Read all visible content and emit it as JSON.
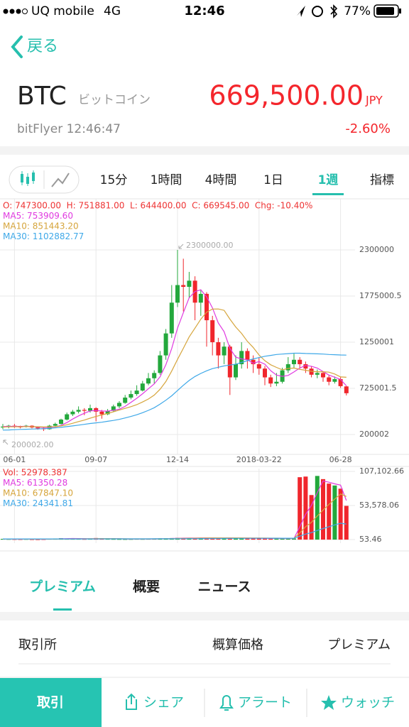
{
  "status_bar": {
    "carrier": "UQ mobile",
    "network": "4G",
    "time": "12:46",
    "battery": "77%"
  },
  "header": {
    "back": "戻る",
    "symbol": "BTC",
    "name": "ビットコイン",
    "price": "669,500.00",
    "currency": "JPY",
    "source_time": "bitFlyer 12:46:47",
    "change": "-2.60%"
  },
  "timeframe_tabs": {
    "items": [
      "15分",
      "1時間",
      "4時間",
      "1日",
      "1週",
      "指標"
    ],
    "active": 4
  },
  "chart_data": [
    {
      "type": "candlestick",
      "info_line": "O: 747300.00  H: 751881.00  L: 644400.00  C: 669545.00  Chg: -10.40%",
      "annotations": [
        "2300000.00",
        "200002.00"
      ],
      "categories": [
        null,
        null,
        "06-01",
        null,
        null,
        null,
        null,
        null,
        null,
        null,
        null,
        null,
        null,
        null,
        null,
        null,
        "09-07",
        null,
        null,
        null,
        null,
        null,
        null,
        null,
        null,
        null,
        null,
        null,
        null,
        null,
        "12-14",
        null,
        null,
        null,
        null,
        null,
        null,
        null,
        null,
        null,
        null,
        null,
        null,
        null,
        "2018-03-22",
        null,
        null,
        null,
        null,
        null,
        null,
        null,
        null,
        null,
        null,
        null,
        null,
        null,
        "06-28",
        null
      ],
      "open": [
        280000,
        290000,
        300000,
        290000,
        285000,
        300000,
        280000,
        270000,
        260000,
        300000,
        320000,
        370000,
        430000,
        460000,
        480000,
        470000,
        500000,
        460000,
        430000,
        470000,
        520000,
        560000,
        620000,
        660000,
        700000,
        780000,
        840000,
        900000,
        1100000,
        1350000,
        1700000,
        1900000,
        1880000,
        1950000,
        1700000,
        1800000,
        1500000,
        1250000,
        1100000,
        1200000,
        850000,
        1000000,
        1150000,
        1050000,
        1000000,
        950000,
        850000,
        780000,
        800000,
        930000,
        1000000,
        1050000,
        1000000,
        950000,
        880000,
        900000,
        850000,
        800000,
        830000,
        747300
      ],
      "high": [
        320000,
        310000,
        320000,
        300000,
        310000,
        305000,
        290000,
        285000,
        310000,
        335000,
        380000,
        450000,
        480000,
        520000,
        500000,
        540000,
        510000,
        480000,
        490000,
        540000,
        580000,
        650000,
        700000,
        760000,
        810000,
        900000,
        930000,
        1150000,
        1400000,
        1900000,
        2300000,
        2200000,
        2050000,
        2000000,
        1850000,
        1820000,
        1550000,
        1300000,
        1250000,
        1220000,
        1100000,
        1250000,
        1180000,
        1100000,
        1080000,
        980000,
        880000,
        900000,
        960000,
        1080000,
        1120000,
        1080000,
        1030000,
        980000,
        940000,
        920000,
        870000,
        860000,
        850000,
        751881
      ],
      "low": [
        260000,
        270000,
        275000,
        270000,
        280000,
        270000,
        255000,
        240000,
        255000,
        295000,
        315000,
        360000,
        410000,
        440000,
        420000,
        450000,
        350000,
        380000,
        420000,
        460000,
        500000,
        550000,
        600000,
        640000,
        690000,
        760000,
        780000,
        880000,
        1050000,
        1300000,
        1650000,
        1600000,
        1750000,
        1500000,
        1550000,
        1200000,
        1100000,
        950000,
        1000000,
        650000,
        820000,
        950000,
        950000,
        900000,
        880000,
        760000,
        740000,
        750000,
        780000,
        900000,
        960000,
        950000,
        900000,
        850000,
        840000,
        800000,
        760000,
        780000,
        730000,
        644400
      ],
      "close": [
        290000,
        300000,
        290000,
        285000,
        300000,
        280000,
        270000,
        260000,
        300000,
        320000,
        370000,
        430000,
        460000,
        480000,
        470000,
        500000,
        460000,
        430000,
        470000,
        520000,
        560000,
        620000,
        660000,
        700000,
        780000,
        840000,
        900000,
        1100000,
        1350000,
        1700000,
        1900000,
        1880000,
        1950000,
        1700000,
        1800000,
        1500000,
        1250000,
        1100000,
        1200000,
        850000,
        1000000,
        1150000,
        1050000,
        1000000,
        950000,
        850000,
        780000,
        800000,
        930000,
        1000000,
        1050000,
        1000000,
        950000,
        880000,
        900000,
        850000,
        800000,
        830000,
        750000,
        669545
      ],
      "up_color": "#23a83c",
      "down_color": "#f0262c",
      "series": [
        {
          "name": "MA5: 753909.60",
          "color": "#e03ae0",
          "values": [
            290000,
            292000,
            293000,
            292000,
            293000,
            291000,
            285000,
            279000,
            282000,
            286000,
            304000,
            336000,
            376000,
            412000,
            442000,
            468000,
            474000,
            468000,
            466000,
            476000,
            488000,
            520000,
            566000,
            612000,
            664000,
            720000,
            776000,
            856000,
            994000,
            1178000,
            1410000,
            1586000,
            1756000,
            1826000,
            1846000,
            1766000,
            1640000,
            1470000,
            1370000,
            1180000,
            1080000,
            1060000,
            1050000,
            1010000,
            1030000,
            1000000,
            926000,
            876000,
            862000,
            872000,
            912000,
            956000,
            986000,
            976000,
            956000,
            916000,
            876000,
            852000,
            826000,
            753909.6
          ]
        },
        {
          "name": "MA10: 851443.20",
          "color": "#d6a53c",
          "values": [
            285000,
            287000,
            288000,
            289000,
            290000,
            290000,
            289000,
            286000,
            287000,
            289000,
            298000,
            311000,
            328000,
            347000,
            364000,
            386000,
            405000,
            422000,
            439000,
            459000,
            478000,
            497000,
            517000,
            539000,
            570000,
            604000,
            648000,
            715000,
            803000,
            921000,
            1055000,
            1181000,
            1310000,
            1410000,
            1512000,
            1592000,
            1627000,
            1628000,
            1613000,
            1513000,
            1423000,
            1350000,
            1260000,
            1190000,
            1105000,
            1040000,
            993000,
            963000,
            936000,
            951000,
            956000,
            941000,
            931000,
            919000,
            914000,
            914000,
            909000,
            888000,
            855000,
            851443.2
          ]
        },
        {
          "name": "MA30: 1102882.77",
          "color": "#3ea8e8",
          "values": [
            250000,
            252000,
            255000,
            258000,
            260000,
            262000,
            264000,
            266000,
            270000,
            275000,
            282000,
            290000,
            298000,
            307000,
            316000,
            325000,
            333000,
            340000,
            350000,
            360000,
            372000,
            388000,
            405000,
            425000,
            448000,
            475000,
            505000,
            545000,
            590000,
            640000,
            700000,
            760000,
            815000,
            860000,
            895000,
            925000,
            950000,
            965000,
            980000,
            990000,
            1000000,
            1020000,
            1040000,
            1060000,
            1075000,
            1090000,
            1100000,
            1110000,
            1115000,
            1120000,
            1125000,
            1125000,
            1122000,
            1120000,
            1118000,
            1115000,
            1110000,
            1108000,
            1105000,
            1102882.77
          ]
        }
      ],
      "ylim": [
        -26000,
        2881600
      ],
      "yticks": [
        2300000,
        1775000.5,
        1250001,
        725001.5,
        200002
      ],
      "grid": true
    },
    {
      "type": "bar",
      "legend_title": "Vol: 52978.387",
      "values": [
        1200,
        900,
        800,
        700,
        900,
        600,
        500,
        700,
        1500,
        1800,
        2200,
        1600,
        1400,
        1200,
        1000,
        1300,
        2500,
        1500,
        1100,
        1000,
        900,
        800,
        900,
        1100,
        1000,
        1200,
        1400,
        1600,
        2000,
        2400,
        2800,
        2500,
        2600,
        2400,
        2700,
        3000,
        2600,
        2200,
        2500,
        2800,
        2400,
        2300,
        2100,
        2000,
        1800,
        1900,
        1700,
        1600,
        1800,
        1900,
        1700,
        98000,
        99000,
        70000,
        100000,
        95000,
        88000,
        85000,
        80000,
        52978.387
      ],
      "series": [
        {
          "name": "MA5: 61350.28",
          "color": "#e03ae0",
          "values": [
            1000,
            950,
            900,
            850,
            900,
            780,
            700,
            680,
            840,
            1020,
            1340,
            1560,
            1700,
            1640,
            1480,
            1300,
            1480,
            1500,
            1460,
            1480,
            1360,
            1060,
            960,
            980,
            960,
            1000,
            1120,
            1260,
            1440,
            1720,
            2080,
            2340,
            2460,
            2540,
            2600,
            2640,
            2640,
            2580,
            2580,
            2620,
            2500,
            2440,
            2420,
            2320,
            2280,
            2020,
            1900,
            1820,
            1760,
            1760,
            1740,
            20200,
            39800,
            53800,
            73600,
            92200,
            90200,
            87600,
            85600,
            61350.28
          ]
        },
        {
          "name": "MA10: 67847.10",
          "color": "#d6a53c",
          "values": [
            1000,
            980,
            960,
            940,
            920,
            900,
            880,
            860,
            870,
            900,
            960,
            1060,
            1160,
            1240,
            1260,
            1320,
            1480,
            1600,
            1560,
            1480,
            1360,
            1270,
            1230,
            1220,
            1220,
            1230,
            1240,
            1260,
            1350,
            1520,
            1720,
            1930,
            2090,
            2200,
            2350,
            2580,
            2630,
            2630,
            2640,
            2640,
            2640,
            2620,
            2570,
            2540,
            2450,
            2370,
            2310,
            2270,
            2200,
            2180,
            2000,
            10600,
            20300,
            27200,
            37100,
            46500,
            55300,
            63700,
            71600,
            67847.1
          ]
        },
        {
          "name": "MA30: 24341.81",
          "color": "#3ea8e8",
          "values": [
            1100,
            1090,
            1080,
            1070,
            1060,
            1050,
            1040,
            1030,
            1040,
            1050,
            1060,
            1070,
            1080,
            1090,
            1100,
            1110,
            1130,
            1150,
            1160,
            1170,
            1180,
            1190,
            1200,
            1210,
            1220,
            1230,
            1250,
            1270,
            1300,
            1340,
            1380,
            1430,
            1480,
            1530,
            1590,
            1660,
            1720,
            1770,
            1820,
            1880,
            1930,
            1980,
            2020,
            2060,
            2100,
            2130,
            2160,
            2180,
            2200,
            2220,
            2230,
            5400,
            8700,
            11000,
            14300,
            17400,
            20300,
            23100,
            25700,
            24341.81
          ]
        }
      ],
      "ylim": [
        -5500,
        111560
      ],
      "yticks": [
        {
          "value": 107102.66,
          "label": "107,102.66"
        },
        {
          "value": 53578.06,
          "label": "53,578.06"
        },
        53.46
      ],
      "grid": true
    }
  ],
  "section_tabs": {
    "items": [
      "プレミアム",
      "概要",
      "ニュース"
    ],
    "active": 0
  },
  "table": {
    "headers": [
      "取引所",
      "概算価格",
      "プレミアム"
    ]
  },
  "bottom_bar": {
    "trade": "取引",
    "share": "シェア",
    "alert": "アラート",
    "watch": "ウォッチ"
  }
}
